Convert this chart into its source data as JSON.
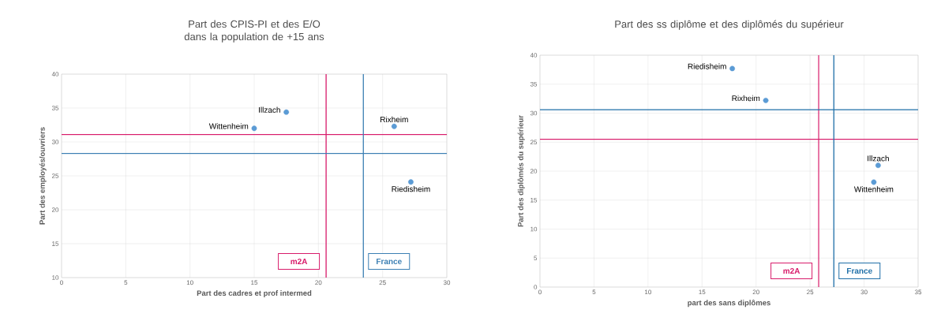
{
  "chart_data": [
    {
      "type": "scatter",
      "title": "Part des CPIS-PI et des E/O dans la population de +15 ans",
      "xlabel": "Part des cadres et prof intermed",
      "ylabel": "Part des employés/ouvriers",
      "x": [
        17.5,
        15,
        25.9,
        27.2
      ],
      "values": [
        34.4,
        32,
        32.3,
        24.1
      ],
      "color": "#5b9bd5",
      "marker": "circle",
      "xlim": [
        0,
        30
      ],
      "ylim": [
        10,
        40
      ],
      "xticks": [
        0,
        5,
        10,
        15,
        20,
        25,
        30
      ],
      "yticks": [
        10,
        15,
        20,
        25,
        30,
        35,
        40
      ],
      "grid": true,
      "annotations": [
        {
          "text": "Illzach",
          "x": 17.5,
          "y": 34.4
        },
        {
          "text": "Wittenheim",
          "x": 15,
          "y": 32
        },
        {
          "text": "Rixheim",
          "x": 25.9,
          "y": 32.3
        },
        {
          "text": "Riedisheim",
          "x": 27.2,
          "y": 24.1
        }
      ],
      "ref_lines": [
        {
          "axis": "x",
          "value": 20.6,
          "label": "m2A",
          "color": "#d81b6a"
        },
        {
          "axis": "y",
          "value": 31.1,
          "color": "#d81b6a"
        },
        {
          "axis": "x",
          "value": 23.5,
          "label": "France",
          "color": "#3b7fb3"
        },
        {
          "axis": "y",
          "value": 28.3,
          "color": "#3b7fb3"
        }
      ]
    },
    {
      "type": "scatter",
      "title": "Part des ss diplôme et des diplômés du supérieur",
      "xlabel": "part des sans diplômes",
      "ylabel": "Part des diplômés du supérieur",
      "x": [
        17.8,
        20.9,
        31.3,
        30.9
      ],
      "values": [
        37.7,
        32.2,
        21,
        18.1
      ],
      "color": "#5b9bd5",
      "marker": "circle",
      "xlim": [
        0,
        35
      ],
      "ylim": [
        0,
        40
      ],
      "xticks": [
        0,
        5,
        10,
        15,
        20,
        25,
        30,
        35
      ],
      "yticks": [
        0,
        5,
        10,
        15,
        20,
        25,
        30,
        35,
        40
      ],
      "grid": true,
      "annotations": [
        {
          "text": "Riedisheim",
          "x": 17.8,
          "y": 37.7
        },
        {
          "text": "Rixheim",
          "x": 20.9,
          "y": 32.2
        },
        {
          "text": "Illzach",
          "x": 31.3,
          "y": 21
        },
        {
          "text": "Wittenheim",
          "x": 30.9,
          "y": 18.1
        }
      ],
      "ref_lines": [
        {
          "axis": "x",
          "value": 25.8,
          "label": "m2A",
          "color": "#d81b6a"
        },
        {
          "axis": "y",
          "value": 25.5,
          "color": "#d81b6a"
        },
        {
          "axis": "x",
          "value": 27.2,
          "label": "France",
          "color": "#1f6fa8"
        },
        {
          "axis": "y",
          "value": 30.6,
          "color": "#1f6fa8"
        }
      ]
    }
  ]
}
